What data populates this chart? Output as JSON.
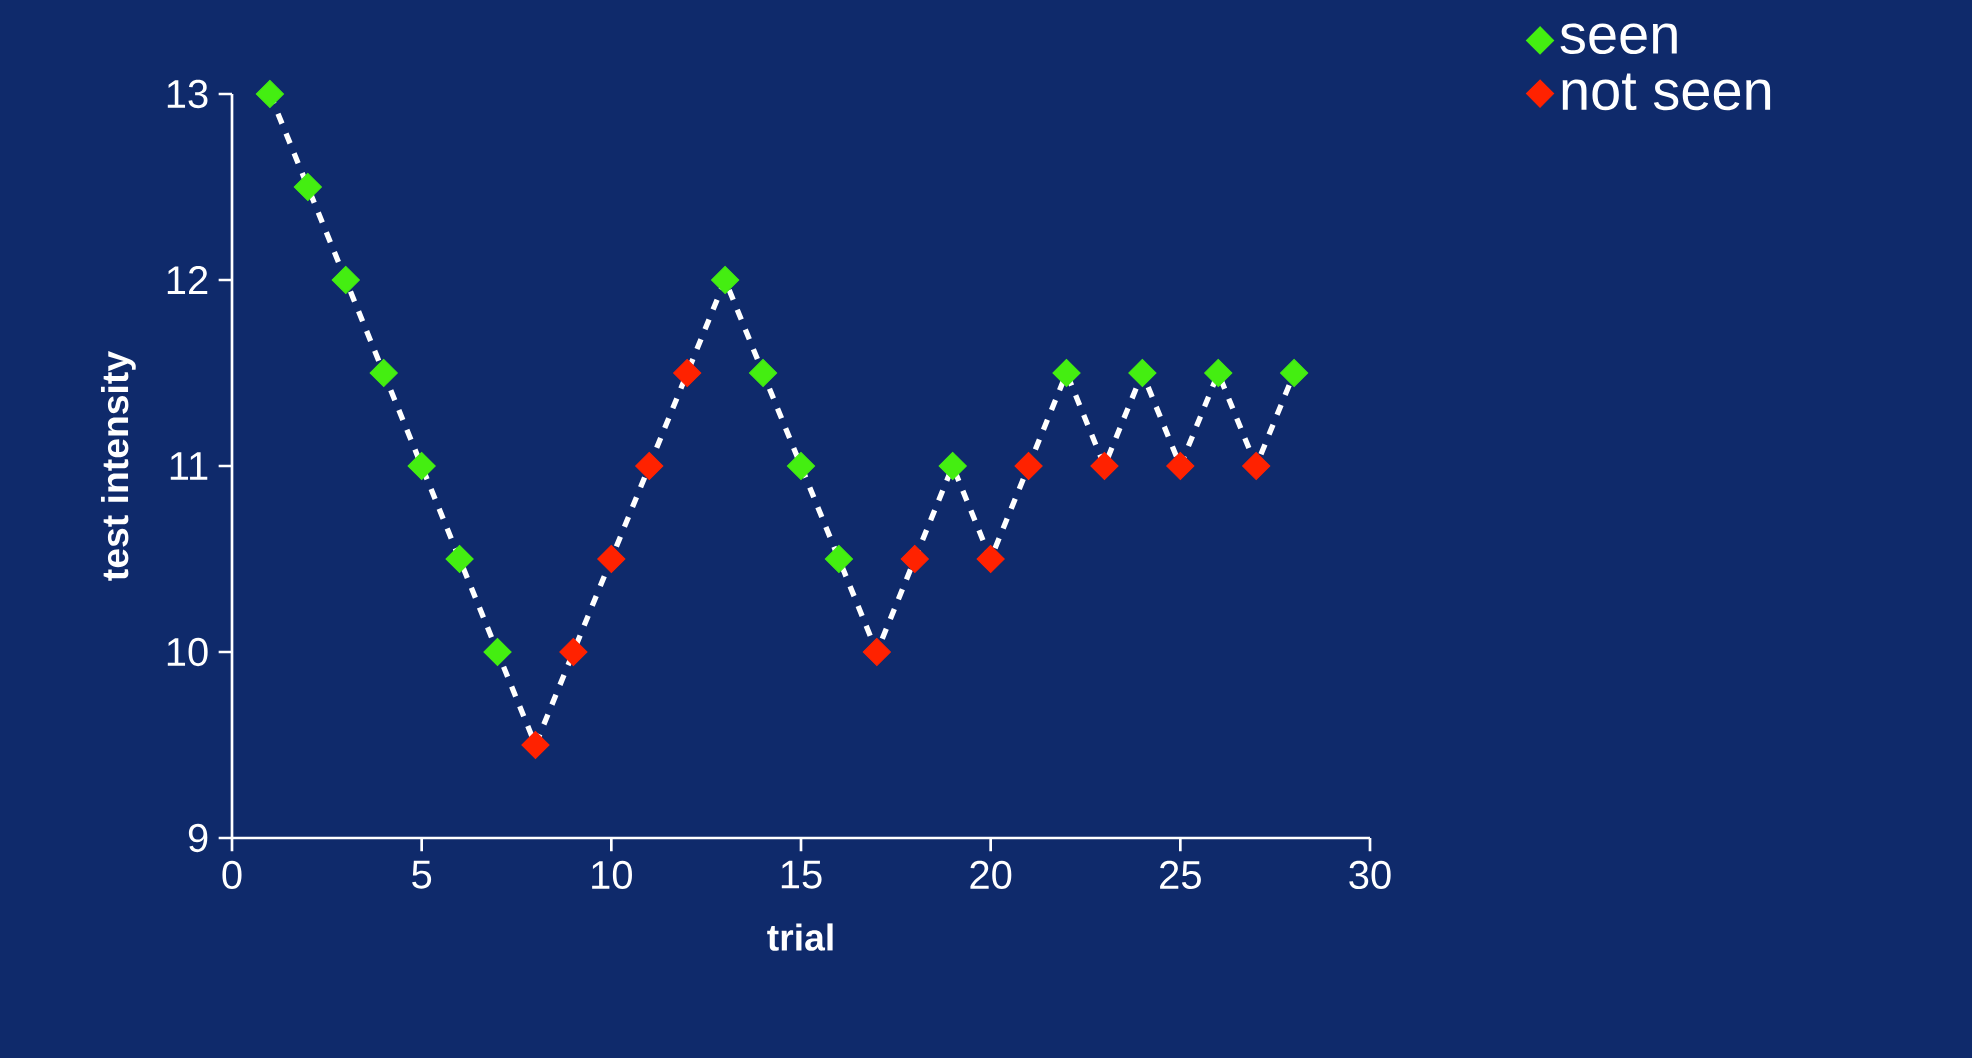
{
  "chart_data": {
    "type": "scatter",
    "xlabel": "trial",
    "ylabel": "test intensity",
    "xlim": [
      0,
      30
    ],
    "ylim": [
      9,
      13
    ],
    "xticks": [
      0,
      5,
      10,
      15,
      20,
      25,
      30
    ],
    "yticks": [
      9,
      10,
      11,
      12,
      13
    ],
    "grid": false,
    "legend": "top right",
    "marker": "diamond",
    "series": [
      {
        "type": "line",
        "color": "#ffffff",
        "line_style": "dashed",
        "marker": "none",
        "x": [
          1,
          2,
          3,
          4,
          5,
          6,
          7,
          8,
          9,
          10,
          11,
          12,
          13,
          14,
          15,
          16,
          17,
          18,
          19,
          20,
          21,
          22,
          23,
          24,
          25,
          26,
          27,
          28
        ],
        "values": [
          13,
          12.5,
          12,
          11.5,
          11,
          10.5,
          10,
          9.5,
          10,
          10.5,
          11,
          11.5,
          12,
          11.5,
          11,
          10.5,
          10,
          10.5,
          11,
          10.5,
          11,
          11.5,
          11,
          11.5,
          11,
          11.5,
          11,
          11.5
        ]
      },
      {
        "name": "seen",
        "color": "#44ee11",
        "x": [
          1,
          2,
          3,
          4,
          5,
          6,
          7,
          13,
          14,
          15,
          16,
          19,
          22,
          24,
          26,
          28
        ],
        "values": [
          13,
          12.5,
          12,
          11.5,
          11,
          10.5,
          10,
          12,
          11.5,
          11,
          10.5,
          11,
          11.5,
          11.5,
          11.5,
          11.5
        ]
      },
      {
        "name": "not seen",
        "color": "#ff2200",
        "x": [
          8,
          9,
          10,
          11,
          12,
          17,
          18,
          20,
          21,
          23,
          25,
          27
        ],
        "values": [
          9.5,
          10,
          10.5,
          11,
          11.5,
          10,
          10.5,
          10.5,
          11,
          11,
          11,
          11
        ]
      }
    ]
  }
}
